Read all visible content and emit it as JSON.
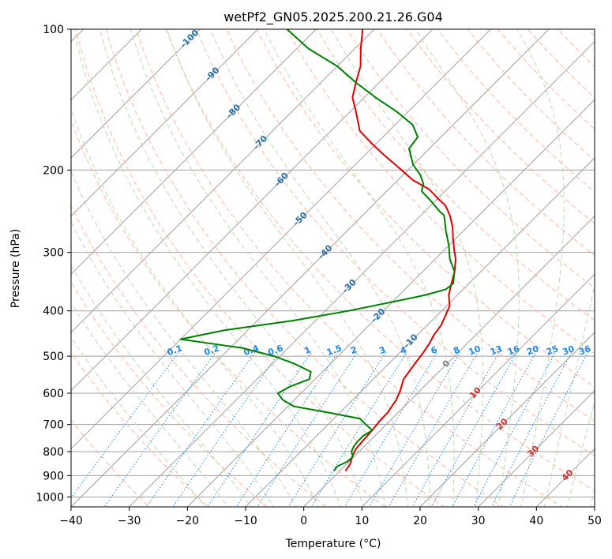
{
  "chart_data": {
    "type": "line",
    "title": "wetPf2_GN05.2025.200.21.26.G04",
    "xlabel": "Temperature (°C)",
    "ylabel": "Pressure (hPa)",
    "xlim": [
      -40,
      50
    ],
    "ylim": [
      1050,
      100
    ],
    "y_scale": "log",
    "skew": "skew-T",
    "x_ticks": [
      -40,
      -30,
      -20,
      -10,
      0,
      10,
      20,
      30,
      40,
      50
    ],
    "y_ticks": [
      100,
      200,
      300,
      400,
      500,
      600,
      700,
      800,
      900,
      1000
    ],
    "grid": true,
    "series": [
      {
        "name": "",
        "color": "#e00000",
        "points": [
          [
            1.0,
            880
          ],
          [
            0.6,
            850
          ],
          [
            -0.3,
            820
          ],
          [
            -1.0,
            790
          ],
          [
            -1.2,
            760
          ],
          [
            -1.4,
            720
          ],
          [
            -1.7,
            690
          ],
          [
            -1.8,
            660
          ],
          [
            -2.5,
            620
          ],
          [
            -3.5,
            590
          ],
          [
            -4.8,
            560
          ],
          [
            -5.5,
            520
          ],
          [
            -6.0,
            490
          ],
          [
            -6.5,
            470
          ],
          [
            -7.2,
            450
          ],
          [
            -7.6,
            430
          ],
          [
            -8.5,
            410
          ],
          [
            -9.5,
            390
          ],
          [
            -11.5,
            370
          ],
          [
            -13.0,
            350
          ],
          [
            -14.5,
            330
          ],
          [
            -16.5,
            310
          ],
          [
            -18.5,
            295
          ],
          [
            -20.5,
            280
          ],
          [
            -22.5,
            265
          ],
          [
            -25.0,
            250
          ],
          [
            -27.5,
            238
          ],
          [
            -30.0,
            230
          ],
          [
            -33.0,
            220
          ],
          [
            -37.5,
            210
          ],
          [
            -43.0,
            195
          ],
          [
            -47.0,
            185
          ],
          [
            -51.0,
            175
          ],
          [
            -55.0,
            165
          ],
          [
            -59.0,
            150
          ],
          [
            -62.0,
            140
          ],
          [
            -64.0,
            130
          ],
          [
            -66.0,
            120
          ],
          [
            -69.0,
            110
          ],
          [
            -72.0,
            100
          ]
        ]
      },
      {
        "name": "",
        "color": "#008000",
        "points": [
          [
            -1.0,
            880
          ],
          [
            -1.2,
            860
          ],
          [
            -0.3,
            840
          ],
          [
            -0.2,
            820
          ],
          [
            -1.3,
            800
          ],
          [
            -1.8,
            780
          ],
          [
            -2.0,
            760
          ],
          [
            -2.0,
            740
          ],
          [
            -1.4,
            720
          ],
          [
            -3.5,
            700
          ],
          [
            -5.5,
            680
          ],
          [
            -12.0,
            660
          ],
          [
            -19.0,
            640
          ],
          [
            -22.0,
            620
          ],
          [
            -24.0,
            600
          ],
          [
            -23.0,
            580
          ],
          [
            -21.0,
            560
          ],
          [
            -22.0,
            540
          ],
          [
            -26.0,
            520
          ],
          [
            -31.0,
            500
          ],
          [
            -38.0,
            480
          ],
          [
            -44.0,
            470
          ],
          [
            -50.0,
            460
          ],
          [
            -44.0,
            440
          ],
          [
            -34.0,
            420
          ],
          [
            -26.0,
            400
          ],
          [
            -19.0,
            380
          ],
          [
            -15.5,
            370
          ],
          [
            -13.0,
            360
          ],
          [
            -12.7,
            350
          ],
          [
            -14.5,
            330
          ],
          [
            -17.5,
            310
          ],
          [
            -20.0,
            290
          ],
          [
            -23.0,
            270
          ],
          [
            -26.0,
            250
          ],
          [
            -27.5,
            245
          ],
          [
            -31.0,
            232
          ],
          [
            -34.0,
            222
          ],
          [
            -35.0,
            214
          ],
          [
            -37.0,
            205
          ],
          [
            -40.0,
            195
          ],
          [
            -43.5,
            180
          ],
          [
            -44.0,
            170
          ],
          [
            -47.0,
            160
          ],
          [
            -52.0,
            150
          ],
          [
            -58.0,
            140
          ],
          [
            -64.0,
            130
          ],
          [
            -70.0,
            120
          ],
          [
            -78.0,
            110
          ],
          [
            -85.0,
            100
          ]
        ]
      }
    ],
    "dry_adiabat_labels": [
      "-100",
      "-90",
      "-80",
      "-70",
      "-60",
      "-50",
      "-40",
      "-30",
      "-20",
      "-10"
    ],
    "mixing_ratio_labels": [
      "0.1",
      "0.2",
      "0.4",
      "0.6",
      "1",
      "1.5",
      "2",
      "3",
      "4",
      "6",
      "8",
      "10",
      "13",
      "16",
      "20",
      "25",
      "30",
      "36"
    ],
    "moist_adiabat_labels": [
      "0",
      "10",
      "20",
      "30",
      "40"
    ],
    "colors": {
      "temperature": "#e00000",
      "dewpoint": "#008000",
      "dry_adiabat_label": "#2a6fa8",
      "mixing_ratio_label": "#1e88e5",
      "moist_adiabat_label": "#d32f2f",
      "zero_label": "#808080",
      "isotherm": "#a0a0a0",
      "dry_adiabat_line": "#ffb59c",
      "moist_adiabat_line": "#b8dcb0",
      "mixing_ratio_line": "#1e88e5",
      "extra_curve": "#d9c3a8"
    }
  }
}
